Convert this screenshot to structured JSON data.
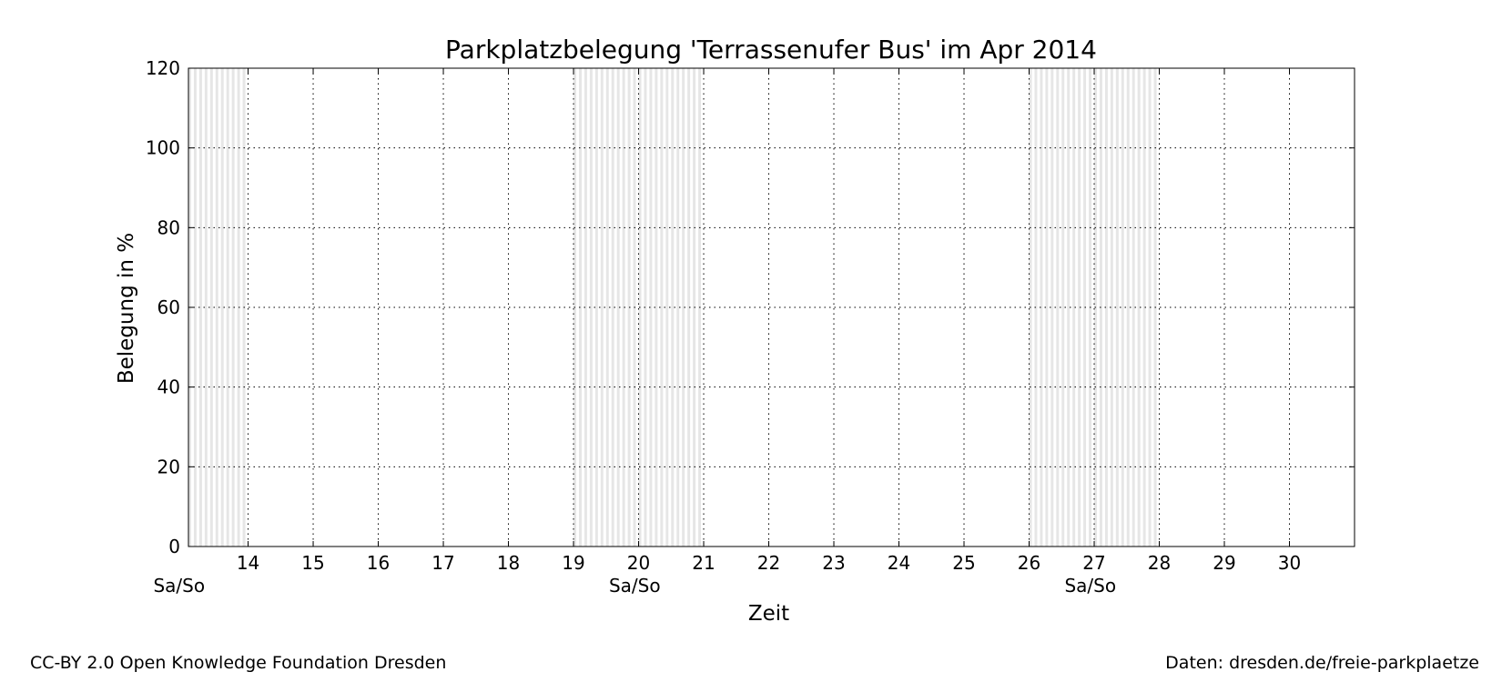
{
  "chart_data": {
    "type": "line",
    "title": "Parkplatzbelegung 'Terrassenufer Bus' im Apr 2014",
    "xlabel": "Zeit",
    "ylabel": "Belegung in %",
    "xlim": [
      "2014-04-13 02:00",
      "2014-05-01 00:00"
    ],
    "ylim": [
      0,
      120
    ],
    "x_ticks": [
      "14",
      "15",
      "16",
      "17",
      "18",
      "19",
      "20",
      "21",
      "22",
      "23",
      "24",
      "25",
      "26",
      "27",
      "28",
      "29",
      "30"
    ],
    "y_ticks": [
      0,
      20,
      40,
      60,
      80,
      100,
      120
    ],
    "grid": true,
    "series": [],
    "weekend_bands": [
      {
        "start": "2014-04-13",
        "end": "2014-04-14"
      },
      {
        "start": "2014-04-19",
        "end": "2014-04-21"
      },
      {
        "start": "2014-04-26",
        "end": "2014-04-28"
      }
    ],
    "weekend_labels": [
      {
        "text": "Sa/So",
        "at": "2014-04-13 12:00"
      },
      {
        "text": "Sa/So",
        "at": "2014-04-20 12:00"
      },
      {
        "text": "Sa/So",
        "at": "2014-04-27 12:00"
      }
    ]
  },
  "footer": {
    "license": "CC-BY 2.0 Open Knowledge Foundation Dresden",
    "source": "Daten: dresden.de/freie-parkplaetze"
  }
}
